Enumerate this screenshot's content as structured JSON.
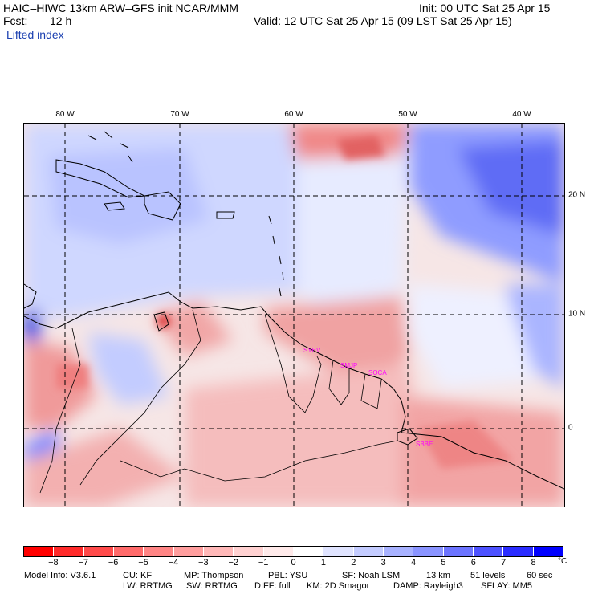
{
  "header": {
    "title": "HAIC–HIWC 13km ARW–GFS init   NCAR/MMM",
    "fcst_label": "Fcst:",
    "fcst_value": "12 h",
    "field": "Lifted index",
    "init": "Init: 00 UTC Sat 25 Apr 15",
    "valid": "Valid: 12 UTC Sat 25 Apr 15 (09 LST Sat 25 Apr 15)"
  },
  "map": {
    "lon_labels": [
      "80 W",
      "70 W",
      "60 W",
      "50 W",
      "40 W"
    ],
    "lat_labels": [
      "20 N",
      "10 N",
      "0"
    ],
    "sites": [
      "SYEV",
      "SMJP",
      "SOCA",
      "SBBE"
    ]
  },
  "colorbar": {
    "tick_labels": [
      "−8",
      "−7",
      "−6",
      "−5",
      "−4",
      "−3",
      "−2",
      "−1",
      "0",
      "1",
      "2",
      "3",
      "4",
      "5",
      "6",
      "7",
      "8"
    ],
    "unit": "°C",
    "colors": [
      "#ff0000",
      "#ff2a2a",
      "#ff4a4a",
      "#ff6a6a",
      "#ff8585",
      "#ff9e9e",
      "#ffb8b8",
      "#ffd1d1",
      "#ffeaea",
      "#ffffff",
      "#e0e4ff",
      "#c4ccff",
      "#a8b2ff",
      "#8a94ff",
      "#6c74ff",
      "#4d52ff",
      "#2a2cff",
      "#0000ff"
    ]
  },
  "model_info": {
    "line1": {
      "version": "Model Info: V3.6.1",
      "cu": "CU: KF",
      "mp": "MP: Thompson",
      "pbl": "PBL: YSU",
      "sf": "SF: Noah LSM",
      "res": "13 km",
      "levels": "51 levels",
      "dt": "60 sec"
    },
    "line2": {
      "lw": "LW: RRTMG",
      "sw": "SW: RRTMG",
      "diff": "DIFF: full",
      "km": "KM: 2D Smagor",
      "damp": "DAMP: Rayleigh3",
      "sflay": "SFLAY: MM5"
    }
  }
}
